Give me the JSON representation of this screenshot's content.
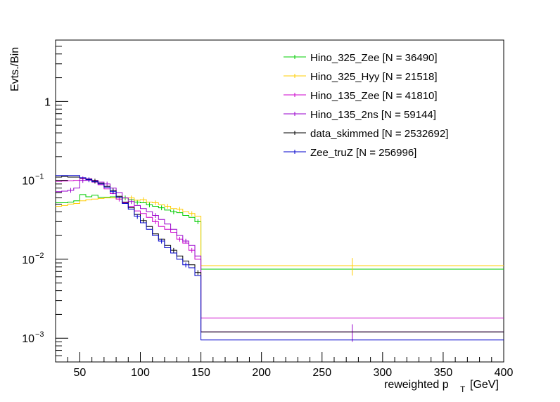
{
  "chart_data": {
    "type": "line",
    "style": "step-histogram",
    "title": "",
    "xlabel_main": "reweighted p",
    "xlabel_sub": "T",
    "xlabel_unit": "[GeV]",
    "ylabel": "Evts./Bin",
    "xlim": [
      30,
      400
    ],
    "ylim": [
      0.0005,
      6
    ],
    "yscale": "log",
    "grid": false,
    "legend_position": "top-right",
    "x_ticks": [
      50,
      100,
      150,
      200,
      250,
      300,
      350,
      400
    ],
    "y_ticks": [
      {
        "value": 0.001,
        "base": "10",
        "exp": "−3"
      },
      {
        "value": 0.01,
        "base": "10",
        "exp": "−2"
      },
      {
        "value": 0.1,
        "base": "10",
        "exp": "−1"
      },
      {
        "value": 1,
        "label": "1"
      }
    ],
    "bin_edges": [
      30,
      35,
      40,
      45,
      50,
      55,
      60,
      65,
      70,
      75,
      80,
      85,
      90,
      95,
      100,
      105,
      110,
      115,
      120,
      125,
      130,
      135,
      140,
      145,
      150,
      400
    ],
    "series": [
      {
        "name": "Hino_325_Zee [N = 36490]",
        "color": "#00cc00",
        "error_bins": [
          11,
          13,
          15,
          17,
          19,
          23
        ],
        "values": [
          0.052,
          0.052,
          0.053,
          0.055,
          0.066,
          0.062,
          0.065,
          0.061,
          0.061,
          0.062,
          0.061,
          0.06,
          0.057,
          0.053,
          0.052,
          0.049,
          0.047,
          0.045,
          0.042,
          0.04,
          0.039,
          0.036,
          0.034,
          0.03,
          0.0075
        ]
      },
      {
        "name": "Hino_325_Hyy [N = 21518]",
        "color": "#ffcc00",
        "error_bins": [
          12,
          14,
          16,
          18,
          20,
          22,
          24
        ],
        "values": [
          0.047,
          0.048,
          0.05,
          0.051,
          0.055,
          0.057,
          0.058,
          0.059,
          0.06,
          0.06,
          0.058,
          0.06,
          0.06,
          0.056,
          0.057,
          0.053,
          0.052,
          0.049,
          0.047,
          0.044,
          0.043,
          0.04,
          0.038,
          0.035,
          0.0083
        ]
      },
      {
        "name": "Hino_135_Zee [N = 41810]",
        "color": "#cc00cc",
        "error_bins": [
          4,
          10,
          16,
          20,
          22
        ],
        "values": [
          0.097,
          0.098,
          0.099,
          0.1,
          0.105,
          0.1,
          0.095,
          0.088,
          0.078,
          0.068,
          0.058,
          0.052,
          0.047,
          0.041,
          0.038,
          0.034,
          0.03,
          0.026,
          0.024,
          0.022,
          0.018,
          0.016,
          0.013,
          0.01,
          0.0018
        ]
      },
      {
        "name": "Hino_135_2ns [N = 59144]",
        "color": "#9900cc",
        "error_bins": [
          2,
          4,
          8,
          12,
          16,
          21,
          24
        ],
        "values": [
          0.072,
          0.073,
          0.075,
          0.08,
          0.1,
          0.105,
          0.1,
          0.095,
          0.09,
          0.08,
          0.07,
          0.06,
          0.054,
          0.048,
          0.044,
          0.04,
          0.036,
          0.032,
          0.028,
          0.024,
          0.02,
          0.017,
          0.015,
          0.011,
          0.0012
        ]
      },
      {
        "name": "data_skimmed [N = 2532692]",
        "color": "#000000",
        "error_bins": [
          6,
          9,
          14,
          19,
          23
        ],
        "values": [
          0.11,
          0.112,
          0.11,
          0.11,
          0.107,
          0.103,
          0.098,
          0.092,
          0.084,
          0.074,
          0.063,
          0.053,
          0.045,
          0.037,
          0.031,
          0.026,
          0.021,
          0.018,
          0.015,
          0.013,
          0.011,
          0.0095,
          0.0085,
          0.0068,
          0.0012
        ]
      },
      {
        "name": "Zee_truZ [N = 256996]",
        "color": "#0000cc",
        "error_bins": [
          5,
          9,
          13,
          17,
          21
        ],
        "values": [
          0.115,
          0.115,
          0.115,
          0.115,
          0.108,
          0.102,
          0.096,
          0.09,
          0.082,
          0.072,
          0.061,
          0.051,
          0.043,
          0.035,
          0.029,
          0.024,
          0.02,
          0.017,
          0.014,
          0.012,
          0.01,
          0.0085,
          0.0078,
          0.0062,
          0.00095
        ]
      }
    ]
  }
}
